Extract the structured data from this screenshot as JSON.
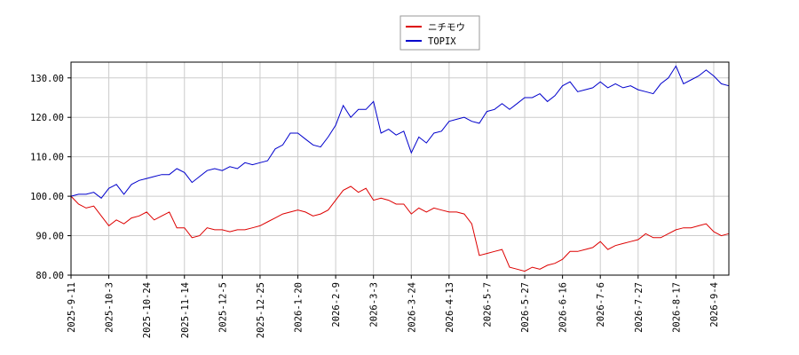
{
  "chart_data": {
    "type": "line",
    "categories": [
      "2025-9-11",
      null,
      null,
      null,
      null,
      "2025-10-3",
      null,
      null,
      null,
      null,
      "2025-10-24",
      null,
      null,
      null,
      null,
      "2025-11-14",
      null,
      null,
      null,
      null,
      "2025-12-5",
      null,
      null,
      null,
      null,
      "2025-12-25",
      null,
      null,
      null,
      null,
      "2026-1-20",
      null,
      null,
      null,
      null,
      "2026-2-9",
      null,
      null,
      null,
      null,
      "2026-3-3",
      null,
      null,
      null,
      null,
      "2026-3-24",
      null,
      null,
      null,
      null,
      "2026-4-13",
      null,
      null,
      null,
      null,
      "2026-5-7",
      null,
      null,
      null,
      null,
      "2026-5-27",
      null,
      null,
      null,
      null,
      "2026-6-16",
      null,
      null,
      null,
      null,
      "2026-7-6",
      null,
      null,
      null,
      null,
      "2026-7-27",
      null,
      null,
      null,
      null,
      "2026-8-17",
      null,
      null,
      null,
      null,
      "2026-9-4",
      null,
      null
    ],
    "series": [
      {
        "name": "ニチモウ",
        "color": "#dd0000",
        "values": [
          100,
          98,
          97,
          97.5,
          95,
          92.5,
          94,
          93,
          94.5,
          95,
          96,
          94,
          95,
          96,
          92,
          92,
          89.5,
          90,
          92,
          91.5,
          91.5,
          91,
          91.5,
          91.5,
          92,
          92.5,
          93.5,
          94.5,
          95.5,
          96,
          96.5,
          96,
          95,
          95.5,
          96.5,
          99,
          101.5,
          102.5,
          101,
          102,
          99,
          99.5,
          99,
          98,
          98,
          95.5,
          97,
          96,
          97,
          96.5,
          96,
          96,
          95.5,
          93,
          85,
          85.5,
          86,
          86.5,
          82,
          81.5,
          81,
          82,
          81.5,
          82.5,
          83,
          84,
          86,
          86,
          86.5,
          87,
          88.5,
          86.5,
          87.5,
          88,
          88.5,
          89,
          90.5,
          89.5,
          89.5,
          90.5,
          91.5,
          92,
          92,
          92.5,
          93,
          91,
          90,
          90.5
        ]
      },
      {
        "name": "TOPIX",
        "color": "#0000cc",
        "values": [
          100,
          100.5,
          100.5,
          101,
          99.5,
          102,
          103,
          100.5,
          103,
          104,
          104.5,
          105,
          105.5,
          105.5,
          107,
          106,
          103.5,
          105,
          106.5,
          107,
          106.5,
          107.5,
          107,
          108.5,
          108,
          108.5,
          109,
          112,
          113,
          116,
          116,
          114.5,
          113,
          112.5,
          115,
          118,
          123,
          120,
          122,
          122,
          124,
          116,
          117,
          115.5,
          116.5,
          111,
          115,
          113.5,
          116,
          116.5,
          119,
          119.5,
          120,
          119,
          118.5,
          121.5,
          122,
          123.5,
          122,
          123.5,
          125,
          125,
          126,
          124,
          125.5,
          128,
          129,
          126.5,
          127,
          127.5,
          129,
          127.5,
          128.5,
          127.5,
          128,
          127,
          126.5,
          126,
          128.5,
          130,
          133,
          128.5,
          129.5,
          130.5,
          132,
          130.5,
          128.5,
          128
        ]
      }
    ],
    "ylim": [
      80,
      134
    ],
    "yticks": [
      {
        "value": 80,
        "label": "80.00"
      },
      {
        "value": 90,
        "label": "90.00"
      },
      {
        "value": 100,
        "label": "100.00"
      },
      {
        "value": 110,
        "label": "110.00"
      },
      {
        "value": 120,
        "label": "120.00"
      },
      {
        "value": 130,
        "label": "130.00"
      }
    ],
    "grid": true,
    "legend": "top"
  }
}
